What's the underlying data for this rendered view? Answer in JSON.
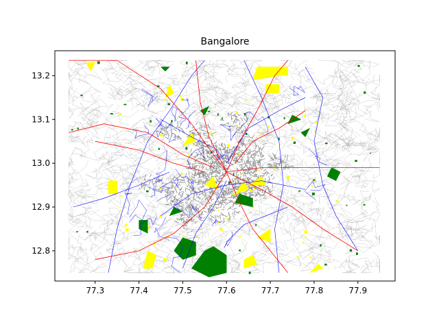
{
  "figure": {
    "title": "Bangalore"
  },
  "chart_data": {
    "type": "map",
    "title": "Bangalore",
    "xlabel": "",
    "ylabel": "",
    "xlim": [
      77.208,
      77.985
    ],
    "ylim": [
      12.731,
      13.257
    ],
    "x_ticks": [
      "77.3",
      "77.4",
      "77.5",
      "77.6",
      "77.7",
      "77.8",
      "77.9"
    ],
    "y_ticks": [
      "12.8",
      "12.9",
      "13.0",
      "13.1",
      "13.2"
    ],
    "grid": false,
    "legend": "none",
    "layers": [
      {
        "name": "minor roads",
        "color": "#a0a0a0"
      },
      {
        "name": "built-up areas",
        "color": "#888888"
      },
      {
        "name": "secondary roads",
        "color": "#0000ff"
      },
      {
        "name": "major roads",
        "color": "#ff0000"
      },
      {
        "name": "parks / forests",
        "color": "#008000"
      },
      {
        "name": "land use",
        "color": "#ffff00"
      }
    ],
    "features": {
      "major_roads": [
        [
          [
            77.24,
            13.235
          ],
          [
            77.35,
            13.235
          ],
          [
            77.45,
            13.17
          ],
          [
            77.52,
            13.09
          ],
          [
            77.57,
            13.02
          ],
          [
            77.6,
            12.98
          ]
        ],
        [
          [
            77.24,
            13.07
          ],
          [
            77.32,
            13.09
          ],
          [
            77.42,
            13.07
          ],
          [
            77.5,
            13.02
          ],
          [
            77.57,
            12.99
          ]
        ],
        [
          [
            77.6,
            12.98
          ],
          [
            77.68,
            12.99
          ],
          [
            77.76,
            12.99
          ],
          [
            77.85,
            12.99
          ],
          [
            77.95,
            12.99
          ]
        ],
        [
          [
            77.6,
            12.98
          ],
          [
            77.63,
            12.91
          ],
          [
            77.66,
            12.85
          ],
          [
            77.7,
            12.8
          ],
          [
            77.74,
            12.75
          ]
        ],
        [
          [
            77.6,
            12.98
          ],
          [
            77.55,
            12.9
          ],
          [
            77.48,
            12.84
          ],
          [
            77.4,
            12.8
          ],
          [
            77.3,
            12.78
          ]
        ],
        [
          [
            77.6,
            12.98
          ],
          [
            77.63,
            13.05
          ],
          [
            77.67,
            13.12
          ],
          [
            77.71,
            13.2
          ],
          [
            77.74,
            13.235
          ]
        ],
        [
          [
            77.6,
            12.98
          ],
          [
            77.56,
            13.06
          ],
          [
            77.54,
            13.14
          ],
          [
            77.53,
            13.235
          ]
        ],
        [
          [
            77.6,
            12.98
          ],
          [
            77.68,
            12.94
          ],
          [
            77.75,
            12.9
          ],
          [
            77.82,
            12.85
          ],
          [
            77.9,
            12.8
          ]
        ],
        [
          [
            77.3,
            13.05
          ],
          [
            77.4,
            13.03
          ],
          [
            77.48,
            13.0
          ],
          [
            77.55,
            12.98
          ]
        ],
        [
          [
            77.62,
            13.0
          ],
          [
            77.66,
            13.05
          ],
          [
            77.72,
            13.08
          ],
          [
            77.78,
            13.12
          ]
        ]
      ],
      "blue_roads": [
        [
          [
            77.33,
            12.75
          ],
          [
            77.35,
            12.85
          ],
          [
            77.38,
            12.95
          ],
          [
            77.42,
            13.05
          ],
          [
            77.47,
            13.12
          ],
          [
            77.52,
            13.2
          ],
          [
            77.55,
            13.235
          ]
        ],
        [
          [
            77.72,
            12.75
          ],
          [
            77.71,
            12.85
          ],
          [
            77.73,
            12.95
          ],
          [
            77.72,
            13.05
          ],
          [
            77.68,
            13.15
          ],
          [
            77.64,
            13.235
          ]
        ],
        [
          [
            77.45,
            12.88
          ],
          [
            77.52,
            12.93
          ],
          [
            77.6,
            12.95
          ],
          [
            77.68,
            12.96
          ],
          [
            77.78,
            12.94
          ]
        ],
        [
          [
            77.5,
            12.76
          ],
          [
            77.53,
            12.84
          ],
          [
            77.57,
            12.9
          ],
          [
            77.6,
            12.96
          ]
        ],
        [
          [
            77.78,
            13.22
          ],
          [
            77.82,
            13.15
          ],
          [
            77.8,
            13.05
          ],
          [
            77.82,
            12.95
          ],
          [
            77.85,
            12.88
          ],
          [
            77.9,
            12.8
          ]
        ],
        [
          [
            77.25,
            12.9
          ],
          [
            77.32,
            12.92
          ],
          [
            77.4,
            12.95
          ],
          [
            77.47,
            12.98
          ]
        ],
        [
          [
            77.6,
            13.0
          ],
          [
            77.65,
            13.08
          ],
          [
            77.72,
            13.12
          ],
          [
            77.78,
            13.15
          ]
        ],
        [
          [
            77.45,
            13.1
          ],
          [
            77.52,
            13.06
          ],
          [
            77.58,
            13.03
          ]
        ],
        [
          [
            77.6,
            12.82
          ],
          [
            77.64,
            12.86
          ],
          [
            77.69,
            12.88
          ],
          [
            77.74,
            12.9
          ]
        ]
      ],
      "built_up": [
        [
          77.6,
          12.97,
          0.09,
          0.07
        ],
        [
          77.56,
          13.0,
          0.05,
          0.05
        ],
        [
          77.66,
          12.95,
          0.05,
          0.04
        ],
        [
          77.5,
          12.93,
          0.04,
          0.04
        ],
        [
          77.58,
          12.9,
          0.05,
          0.04
        ],
        [
          77.65,
          13.02,
          0.04,
          0.04
        ],
        [
          77.54,
          13.06,
          0.03,
          0.03
        ],
        [
          77.48,
          13.07,
          0.03,
          0.02
        ],
        [
          77.43,
          12.95,
          0.03,
          0.02
        ],
        [
          77.72,
          13.0,
          0.03,
          0.02
        ],
        [
          77.52,
          12.87,
          0.03,
          0.03
        ],
        [
          77.62,
          13.09,
          0.03,
          0.03
        ]
      ],
      "green_areas": [
        [
          [
            77.52,
            12.76
          ],
          [
            77.56,
            12.74
          ],
          [
            77.6,
            12.75
          ],
          [
            77.6,
            12.79
          ],
          [
            77.57,
            12.81
          ],
          [
            77.55,
            12.8
          ]
        ],
        [
          [
            77.48,
            12.8
          ],
          [
            77.5,
            12.78
          ],
          [
            77.53,
            12.79
          ],
          [
            77.53,
            12.82
          ],
          [
            77.5,
            12.83
          ]
        ],
        [
          [
            77.4,
            12.85
          ],
          [
            77.42,
            12.84
          ],
          [
            77.42,
            12.87
          ],
          [
            77.4,
            12.87
          ]
        ],
        [
          [
            77.83,
            12.97
          ],
          [
            77.85,
            12.96
          ],
          [
            77.86,
            12.98
          ],
          [
            77.84,
            12.99
          ]
        ],
        [
          [
            77.74,
            13.09
          ],
          [
            77.77,
            13.1
          ],
          [
            77.75,
            13.11
          ]
        ],
        [
          [
            77.77,
            13.07
          ],
          [
            77.78,
            13.06
          ],
          [
            77.79,
            13.08
          ]
        ],
        [
          [
            77.45,
            13.22
          ],
          [
            77.47,
            13.22
          ],
          [
            77.46,
            13.21
          ]
        ],
        [
          [
            77.62,
            12.91
          ],
          [
            77.66,
            12.9
          ],
          [
            77.66,
            12.92
          ],
          [
            77.63,
            12.93
          ]
        ],
        [
          [
            77.55,
            13.11
          ],
          [
            77.56,
            13.13
          ],
          [
            77.54,
            13.12
          ]
        ],
        [
          [
            77.47,
            12.88
          ],
          [
            77.5,
            12.89
          ],
          [
            77.48,
            12.9
          ]
        ]
      ],
      "yellow_areas": [
        [
          [
            77.66,
            13.19
          ],
          [
            77.72,
            13.2
          ],
          [
            77.74,
            13.2
          ],
          [
            77.74,
            13.22
          ],
          [
            77.67,
            13.22
          ]
        ],
        [
          [
            77.69,
            13.16
          ],
          [
            77.72,
            13.16
          ],
          [
            77.72,
            13.18
          ],
          [
            77.69,
            13.18
          ]
        ],
        [
          [
            77.46,
            13.15
          ],
          [
            77.48,
            13.16
          ],
          [
            77.47,
            13.18
          ]
        ],
        [
          [
            77.33,
            12.93
          ],
          [
            77.35,
            12.93
          ],
          [
            77.35,
            12.96
          ],
          [
            77.33,
            12.96
          ]
        ],
        [
          [
            77.41,
            12.76
          ],
          [
            77.43,
            12.76
          ],
          [
            77.44,
            12.79
          ],
          [
            77.42,
            12.8
          ]
        ],
        [
          [
            77.64,
            12.76
          ],
          [
            77.67,
            12.77
          ],
          [
            77.66,
            12.79
          ],
          [
            77.64,
            12.78
          ]
        ],
        [
          [
            77.79,
            12.75
          ],
          [
            77.82,
            12.76
          ],
          [
            77.81,
            12.77
          ]
        ],
        [
          [
            77.62,
            12.93
          ],
          [
            77.65,
            12.94
          ],
          [
            77.64,
            12.96
          ]
        ],
        [
          [
            77.65,
            12.95
          ],
          [
            77.69,
            12.95
          ],
          [
            77.68,
            12.97
          ]
        ],
        [
          [
            77.5,
            13.04
          ],
          [
            77.53,
            13.05
          ],
          [
            77.52,
            13.07
          ]
        ],
        [
          [
            77.67,
            12.83
          ],
          [
            77.7,
            12.82
          ],
          [
            77.7,
            12.85
          ]
        ],
        [
          [
            77.28,
            13.23
          ],
          [
            77.3,
            13.23
          ],
          [
            77.29,
            13.21
          ]
        ],
        [
          [
            77.55,
            12.95
          ],
          [
            77.58,
            12.94
          ],
          [
            77.57,
            12.97
          ]
        ]
      ]
    }
  }
}
